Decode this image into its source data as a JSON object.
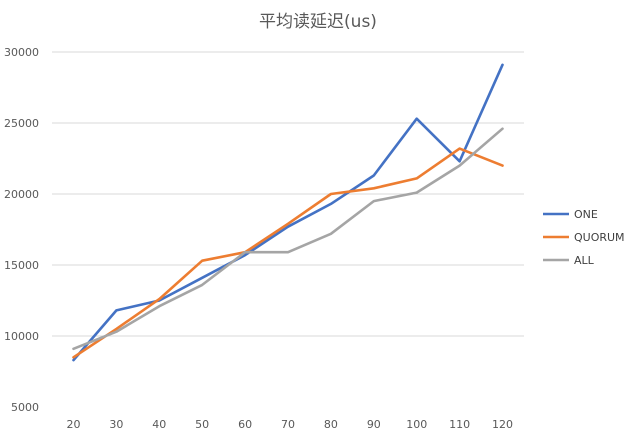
{
  "chart_data": {
    "type": "line",
    "title": "平均读延迟(us)",
    "xlabel": "",
    "ylabel": "",
    "categories": [
      "20",
      "30",
      "40",
      "50",
      "60",
      "70",
      "80",
      "90",
      "100",
      "110",
      "120"
    ],
    "ylim": [
      5000,
      30000
    ],
    "yticks": [
      "5000",
      "10000",
      "15000",
      "20000",
      "25000",
      "30000"
    ],
    "grid": true,
    "legend_position": "right",
    "series": [
      {
        "name": "ONE",
        "color": "#4472c4",
        "values": [
          8300,
          11800,
          12500,
          14100,
          15700,
          17700,
          19300,
          21300,
          25300,
          22300,
          29100
        ]
      },
      {
        "name": "QUORUM",
        "color": "#ed7d31",
        "values": [
          8500,
          10500,
          12600,
          15300,
          15900,
          17900,
          20000,
          20400,
          21100,
          23200,
          22000
        ]
      },
      {
        "name": "ALL",
        "color": "#a5a5a5",
        "values": [
          9100,
          10300,
          12100,
          13600,
          15900,
          15900,
          17200,
          19500,
          20100,
          22000,
          24600
        ]
      }
    ]
  }
}
